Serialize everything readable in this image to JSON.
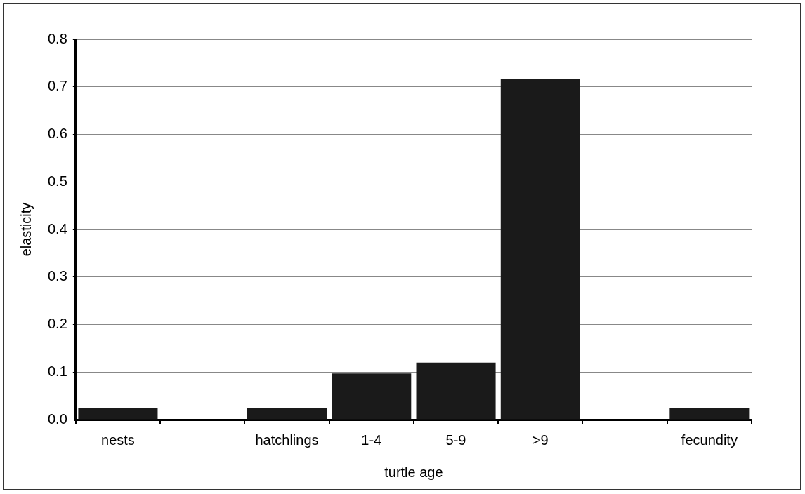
{
  "chart_data": {
    "type": "bar",
    "xlabel": "turtle age",
    "ylabel": "elasticity",
    "categories": [
      "nests",
      null,
      "hatchlings",
      "1-4",
      "5-9",
      ">9",
      null,
      "fecundity"
    ],
    "values": [
      0.025,
      null,
      0.025,
      0.097,
      0.12,
      0.717,
      null,
      0.025
    ],
    "color": "#1a1a1a",
    "ylim": [
      0,
      0.8
    ],
    "yticks": [
      {
        "value": 0,
        "label": "0.0"
      },
      {
        "value": 0.1,
        "label": "0.1"
      },
      {
        "value": 0.2,
        "label": "0.2"
      },
      {
        "value": 0.3,
        "label": "0.3"
      },
      {
        "value": 0.4,
        "label": "0.4"
      },
      {
        "value": 0.5,
        "label": "0.5"
      },
      {
        "value": 0.6,
        "label": "0.6"
      },
      {
        "value": 0.7,
        "label": "0.7"
      },
      {
        "value": 0.8,
        "label": "0.8"
      }
    ],
    "grid": "y",
    "legend": false
  }
}
